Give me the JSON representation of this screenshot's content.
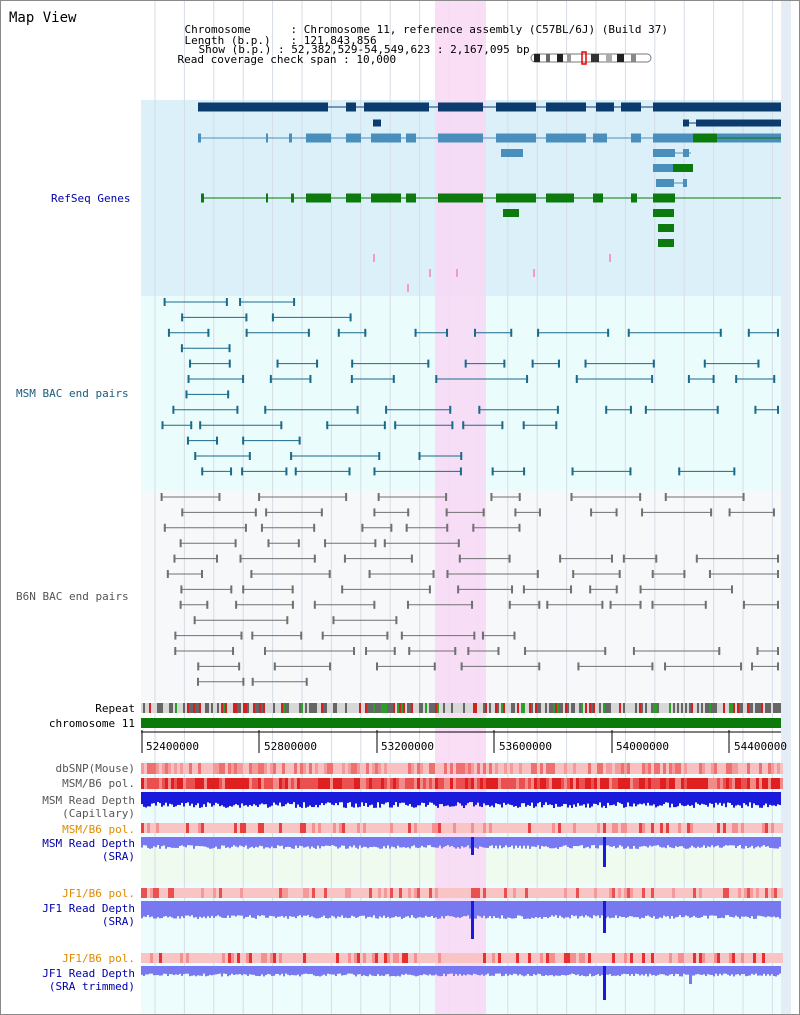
{
  "view_title": "Map View",
  "header": {
    "chromosome_key": "Chromosome",
    "chromosome_value": "Chromosome 11, reference assembly (C57BL/6J) (Build 37)",
    "length_key": "Length (b.p.)",
    "length_value": "121,843,856",
    "show_key": "Show (b.p.)",
    "show_value": "52,382,529-54,549,623 : 2,167,095 bp",
    "coverage_key": "Read coverage check span",
    "coverage_value": "10,000"
  },
  "tracks": {
    "refseq": "RefSeq Genes",
    "msm_bac": "MSM BAC end pairs",
    "b6n_bac": "B6N BAC end pairs",
    "repeat": "Repeat",
    "chromosome": "chromosome 11",
    "dbsnp": "dbSNP(Mouse)",
    "msm_b6_pol": "MSM/B6 pol.",
    "msm_depth_cap_1": "MSM Read Depth",
    "msm_depth_cap_2": "(Capillary)",
    "msm_b6_pol_2": "MSM/B6 pol.",
    "msm_depth_sra_1": "MSM Read Depth",
    "msm_depth_sra_2": "(SRA)",
    "jf1_b6_pol": "JF1/B6 pol.",
    "jf1_depth_sra_1": "JF1 Read Depth",
    "jf1_depth_sra_2": "(SRA)",
    "jf1_b6_pol_2": "JF1/B6 pol.",
    "jf1_depth_trim_1": "JF1 Read Depth",
    "jf1_depth_trim_2": "(SRA trimmed)"
  },
  "axis": {
    "ticks": [
      "52400000",
      "52800000",
      "53200000",
      "53600000",
      "54000000",
      "54400000"
    ]
  },
  "colors": {
    "refseq_bg": "#dcf0fa",
    "msm_bg": "#eafcfc",
    "b6n_bg": "#f6f8fa",
    "highlight": "#f8d8f4",
    "navy": "#0c3b6e",
    "steel": "#4a8fbb",
    "green": "#0d7a0d",
    "msm_line": "#1b6a8c",
    "b6n_line": "#707070",
    "chrom_green": "#0b7a0b",
    "depth_blue": "#1a1adc",
    "sra_blue": "#7878f0",
    "label_blue": "#0000aa",
    "label_teal": "#1a5c7a",
    "label_gray": "#555555",
    "label_orange": "#e08a00"
  }
}
